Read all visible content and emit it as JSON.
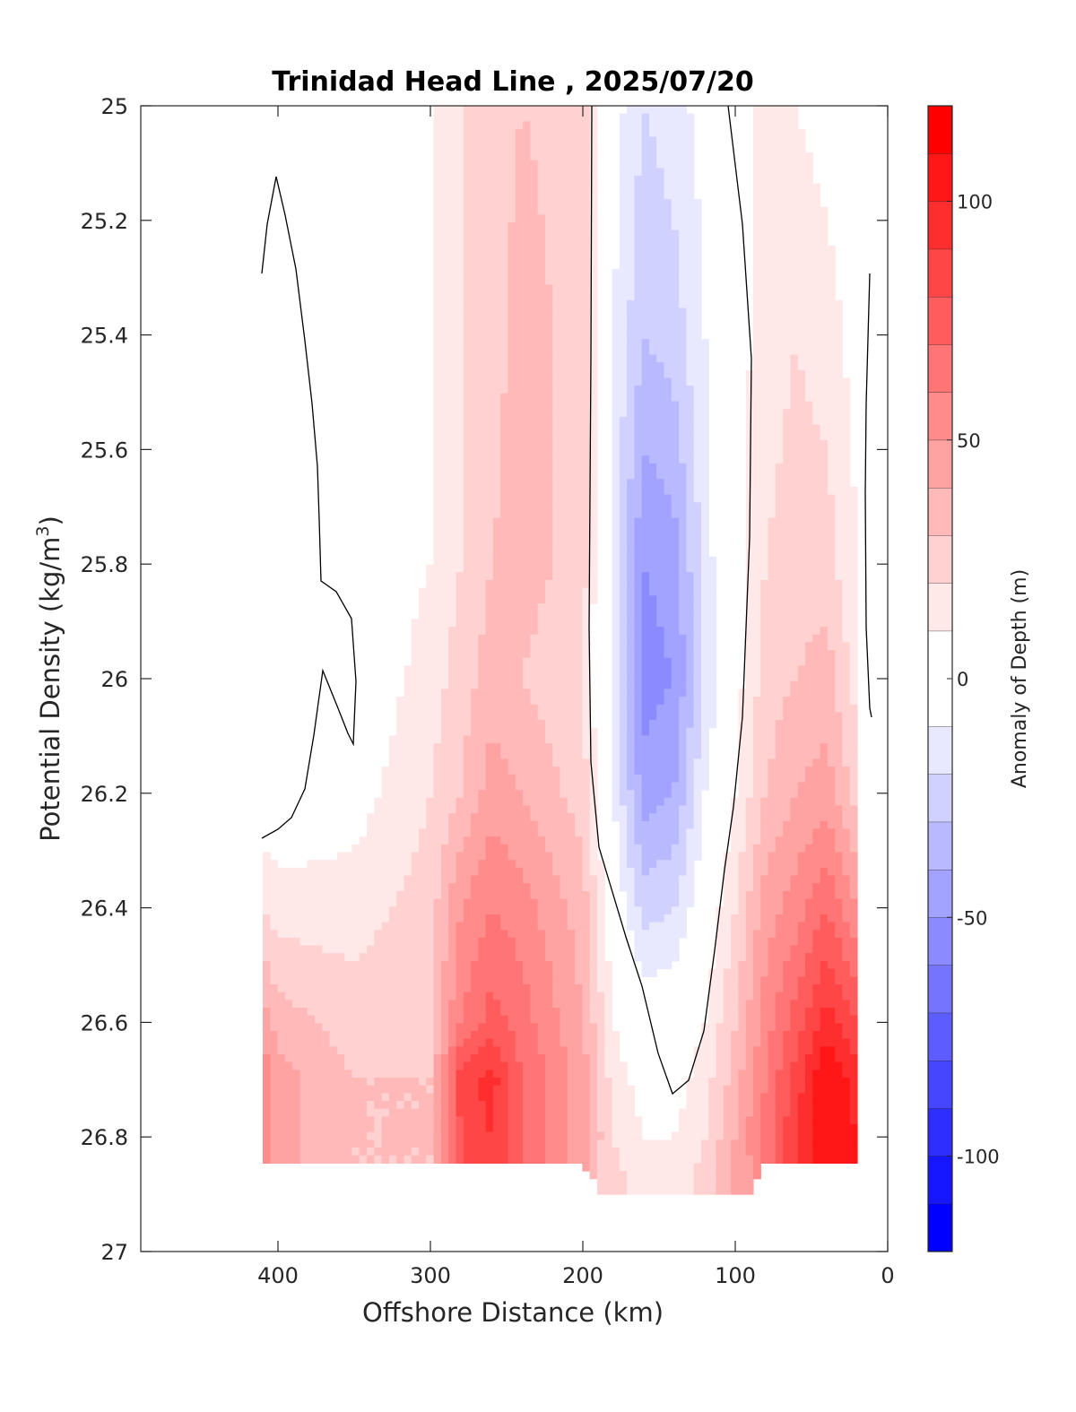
{
  "chart_data": {
    "type": "heatmap",
    "title": "Trinidad Head Line , 2025/07/20",
    "xlabel": "Offshore Distance (km)",
    "ylabel_main": "Potential Density (kg/m",
    "ylabel_sup": "3",
    "ylabel_close": ")",
    "xlim": [
      490,
      0
    ],
    "ylim": [
      25,
      27
    ],
    "x_ticks": [
      400,
      300,
      200,
      100,
      0
    ],
    "x_tick_labels": [
      "400",
      "300",
      "200",
      "100",
      "0"
    ],
    "y_ticks": [
      25,
      25.2,
      25.4,
      25.6,
      25.8,
      26,
      26.2,
      26.4,
      26.6,
      26.8,
      27
    ],
    "y_tick_labels": [
      "25",
      "25.2",
      "25.4",
      "25.6",
      "25.8",
      "26",
      "26.2",
      "26.4",
      "26.6",
      "26.8",
      "27"
    ],
    "colorbar": {
      "label": "Anomaly of Depth (m)",
      "range": [
        -120,
        120
      ],
      "ticks": [
        100,
        50,
        0,
        -50,
        -100
      ],
      "tick_labels": [
        "100",
        "50",
        "0",
        "-50",
        "-100"
      ],
      "levels": [
        -120,
        -110,
        -100,
        -90,
        -80,
        -70,
        -60,
        -50,
        -40,
        -30,
        -20,
        -10,
        10,
        20,
        30,
        40,
        50,
        60,
        70,
        80,
        90,
        100,
        110,
        120
      ]
    },
    "data_columns_km": [
      410,
      400,
      350,
      300,
      280,
      260,
      240,
      200,
      180,
      160,
      140,
      120,
      100,
      80,
      60,
      40,
      20
    ],
    "data_rows_density": [
      25.0,
      25.4,
      25.8,
      26.0,
      26.2,
      26.4,
      26.6,
      26.7,
      26.8,
      26.9
    ],
    "anomaly_m": [
      [
        0,
        0,
        0,
        10,
        20,
        25,
        30,
        25,
        -5,
        -20,
        -15,
        -5,
        5,
        15,
        10,
        5,
        0
      ],
      [
        0,
        0,
        0,
        10,
        20,
        25,
        35,
        25,
        -10,
        -30,
        -25,
        -10,
        5,
        15,
        20,
        15,
        5
      ],
      [
        0,
        -10,
        0,
        10,
        20,
        30,
        35,
        25,
        -15,
        -50,
        -45,
        -15,
        5,
        20,
        25,
        25,
        10
      ],
      [
        0,
        -5,
        0,
        15,
        25,
        35,
        30,
        20,
        -15,
        -55,
        -50,
        -20,
        5,
        25,
        30,
        35,
        15
      ],
      [
        0,
        0,
        5,
        20,
        30,
        45,
        40,
        25,
        -10,
        -45,
        -40,
        -10,
        10,
        30,
        40,
        45,
        25
      ],
      [
        20,
        15,
        15,
        25,
        50,
        60,
        55,
        35,
        0,
        -25,
        -20,
        0,
        20,
        45,
        55,
        70,
        50
      ],
      [
        45,
        35,
        25,
        30,
        60,
        75,
        65,
        40,
        10,
        0,
        0,
        10,
        30,
        55,
        75,
        95,
        80
      ],
      [
        60,
        45,
        30,
        30,
        85,
        95,
        70,
        45,
        15,
        5,
        5,
        15,
        35,
        60,
        85,
        110,
        95
      ],
      [
        60,
        45,
        30,
        30,
        80,
        90,
        70,
        45,
        20,
        10,
        10,
        20,
        40,
        65,
        90,
        110,
        100
      ],
      [
        null,
        null,
        null,
        null,
        null,
        null,
        null,
        null,
        25,
        15,
        15,
        25,
        45,
        null,
        null,
        null,
        null
      ]
    ],
    "zero_contour_lines": 3
  },
  "colors": {
    "negative_max": "#0000ff",
    "positive_max": "#ff0000",
    "zero": "#ffffff",
    "contour": "#000000",
    "axis": "#262626"
  }
}
